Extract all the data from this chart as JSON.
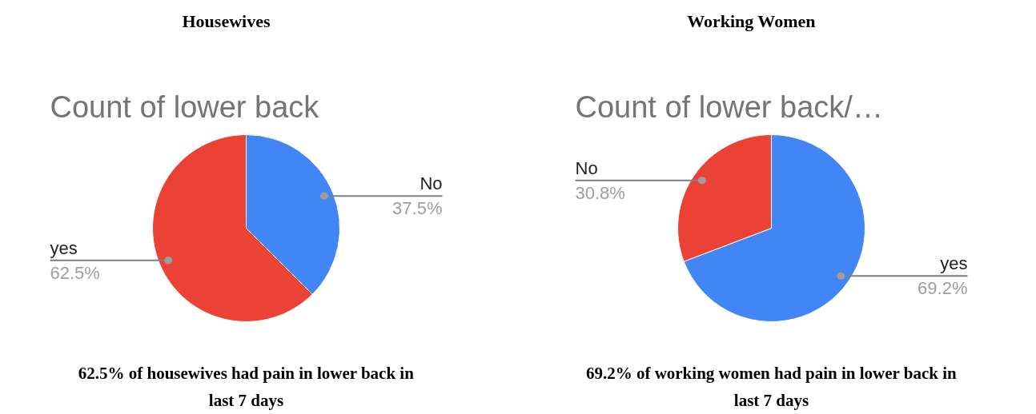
{
  "chart_data": [
    {
      "type": "pie",
      "title": "Housewives",
      "subtitle": "Count of lower back",
      "categories": [
        "No",
        "yes"
      ],
      "values": [
        37.5,
        62.5
      ],
      "colors": [
        "#4285f4",
        "#ea4335"
      ],
      "value_labels": [
        "37.5%",
        "62.5%"
      ],
      "annotations": [
        "62.5% of housewives had pain in lower back in last 7 days"
      ]
    },
    {
      "type": "pie",
      "title": "Working Women",
      "subtitle": "Count of lower back/…",
      "categories": [
        "yes",
        "No"
      ],
      "values": [
        69.2,
        30.8
      ],
      "colors": [
        "#4285f4",
        "#ea4335"
      ],
      "value_labels": [
        "69.2%",
        "30.8%"
      ],
      "annotations": [
        "69.2% of working women had pain in lower back in last 7 days"
      ]
    }
  ]
}
